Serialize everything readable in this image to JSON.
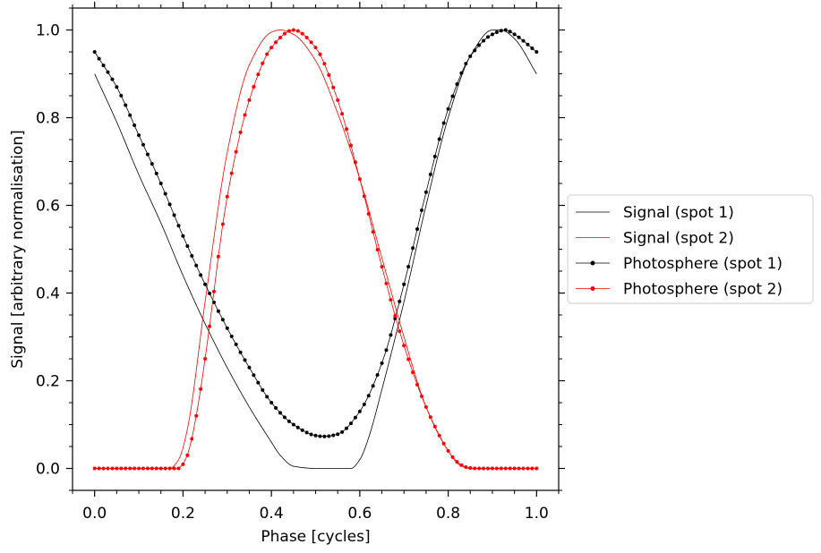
{
  "chart_data": {
    "type": "line",
    "title": "",
    "xlabel": "Phase [cycles]",
    "ylabel": "Signal [arbitrary normalisation]",
    "xlim": [
      -0.05,
      1.05
    ],
    "ylim": [
      -0.05,
      1.05
    ],
    "grid": false,
    "legend_position": "outside-right",
    "x_ticks": [
      "0.0",
      "0.2",
      "0.4",
      "0.6",
      "0.8",
      "1.0"
    ],
    "y_ticks": [
      "0.0",
      "0.2",
      "0.4",
      "0.6",
      "0.8",
      "1.0"
    ],
    "series": [
      {
        "name": "Signal (spot 1)",
        "color": "#000000",
        "markers": false,
        "x": [
          0.0,
          0.05,
          0.1,
          0.15,
          0.2,
          0.25,
          0.3,
          0.35,
          0.4,
          0.42,
          0.45,
          0.5,
          0.55,
          0.58,
          0.6,
          0.62,
          0.65,
          0.7,
          0.75,
          0.8,
          0.85,
          0.9,
          0.92,
          0.95,
          1.0
        ],
        "y": [
          0.9,
          0.79,
          0.67,
          0.56,
          0.44,
          0.33,
          0.23,
          0.14,
          0.06,
          0.03,
          0.005,
          0.0,
          0.0,
          0.0,
          0.02,
          0.07,
          0.18,
          0.38,
          0.6,
          0.8,
          0.94,
          1.0,
          1.0,
          0.98,
          0.9
        ]
      },
      {
        "name": "Signal (spot 2)",
        "color": "#ff0000",
        "markers": false,
        "x": [
          0.0,
          0.1,
          0.17,
          0.19,
          0.21,
          0.25,
          0.3,
          0.35,
          0.4,
          0.42,
          0.45,
          0.5,
          0.55,
          0.6,
          0.65,
          0.7,
          0.75,
          0.8,
          0.83,
          0.85,
          0.9,
          1.0
        ],
        "y": [
          0.0,
          0.0,
          0.0,
          0.02,
          0.09,
          0.38,
          0.72,
          0.92,
          0.995,
          1.0,
          0.99,
          0.93,
          0.81,
          0.66,
          0.48,
          0.3,
          0.14,
          0.04,
          0.005,
          0.0,
          0.0,
          0.0
        ]
      },
      {
        "name": "Photosphere (spot 1)",
        "color": "#000000",
        "markers": true,
        "x": [
          0.0,
          0.05,
          0.1,
          0.15,
          0.2,
          0.25,
          0.3,
          0.35,
          0.4,
          0.45,
          0.5,
          0.52,
          0.55,
          0.6,
          0.65,
          0.7,
          0.75,
          0.8,
          0.85,
          0.9,
          0.93,
          0.95,
          1.0
        ],
        "y": [
          0.95,
          0.87,
          0.76,
          0.65,
          0.53,
          0.42,
          0.32,
          0.23,
          0.15,
          0.1,
          0.075,
          0.073,
          0.078,
          0.13,
          0.24,
          0.42,
          0.63,
          0.82,
          0.94,
          0.99,
          1.0,
          0.99,
          0.95
        ]
      },
      {
        "name": "Photosphere (spot 2)",
        "color": "#ff0000",
        "markers": true,
        "x": [
          0.0,
          0.1,
          0.19,
          0.21,
          0.23,
          0.25,
          0.3,
          0.35,
          0.4,
          0.45,
          0.5,
          0.55,
          0.6,
          0.65,
          0.7,
          0.75,
          0.8,
          0.82,
          0.84,
          0.86,
          0.9,
          1.0
        ],
        "y": [
          0.0,
          0.0,
          0.0,
          0.03,
          0.12,
          0.25,
          0.62,
          0.84,
          0.96,
          1.0,
          0.96,
          0.84,
          0.66,
          0.46,
          0.28,
          0.14,
          0.04,
          0.015,
          0.003,
          0.0,
          0.0,
          0.0
        ]
      }
    ]
  }
}
